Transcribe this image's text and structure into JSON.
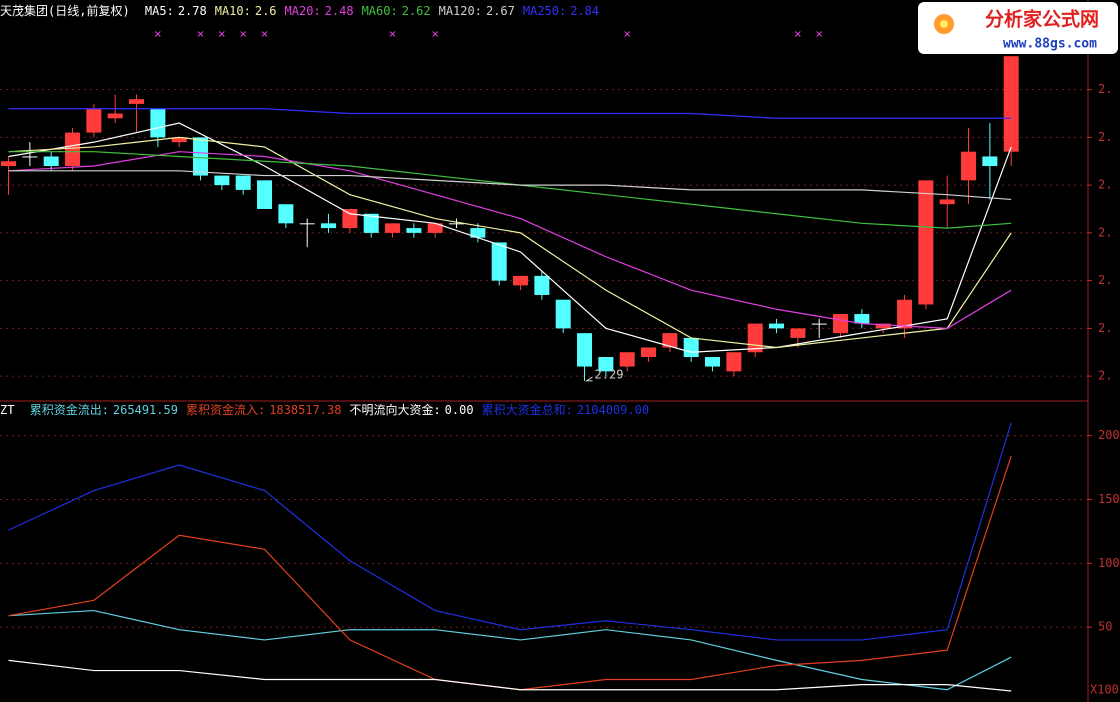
{
  "chart_data": [
    {
      "type": "candlestick",
      "title": "天茂集团(日线,前复权)",
      "open": [
        2.74,
        2.76,
        2.76,
        2.74,
        2.81,
        2.84,
        2.87,
        2.86,
        2.79,
        2.8,
        2.72,
        2.72,
        2.71,
        2.66,
        2.62,
        2.62,
        2.61,
        2.64,
        2.6,
        2.61,
        2.6,
        2.62,
        2.61,
        2.58,
        2.49,
        2.51,
        2.46,
        2.39,
        2.34,
        2.32,
        2.34,
        2.36,
        2.38,
        2.34,
        2.31,
        2.35,
        2.41,
        2.38,
        2.41,
        2.39,
        2.43,
        2.4,
        2.4,
        2.45,
        2.66,
        2.71,
        2.76,
        2.77
      ],
      "high": [
        2.76,
        2.79,
        2.77,
        2.82,
        2.87,
        2.89,
        2.89,
        2.86,
        2.8,
        2.8,
        2.72,
        2.72,
        2.71,
        2.66,
        2.63,
        2.64,
        2.65,
        2.64,
        2.62,
        2.62,
        2.62,
        2.63,
        2.62,
        2.58,
        2.51,
        2.52,
        2.46,
        2.39,
        2.34,
        2.35,
        2.36,
        2.39,
        2.38,
        2.34,
        2.35,
        2.41,
        2.42,
        2.4,
        2.42,
        2.43,
        2.44,
        2.41,
        2.47,
        2.71,
        2.72,
        2.82,
        2.83,
        2.97
      ],
      "low": [
        2.68,
        2.74,
        2.73,
        2.73,
        2.8,
        2.83,
        2.81,
        2.78,
        2.78,
        2.71,
        2.69,
        2.68,
        2.65,
        2.61,
        2.57,
        2.6,
        2.6,
        2.59,
        2.59,
        2.59,
        2.59,
        2.61,
        2.58,
        2.49,
        2.48,
        2.46,
        2.39,
        2.29,
        2.3,
        2.31,
        2.33,
        2.35,
        2.33,
        2.31,
        2.3,
        2.34,
        2.39,
        2.36,
        2.38,
        2.38,
        2.4,
        2.39,
        2.38,
        2.44,
        2.61,
        2.66,
        2.67,
        2.74
      ],
      "close": [
        2.75,
        2.76,
        2.74,
        2.81,
        2.86,
        2.85,
        2.88,
        2.8,
        2.8,
        2.72,
        2.7,
        2.69,
        2.65,
        2.62,
        2.62,
        2.61,
        2.65,
        2.6,
        2.62,
        2.6,
        2.62,
        2.62,
        2.59,
        2.5,
        2.51,
        2.47,
        2.4,
        2.32,
        2.31,
        2.35,
        2.36,
        2.39,
        2.34,
        2.32,
        2.35,
        2.41,
        2.4,
        2.4,
        2.41,
        2.43,
        2.41,
        2.41,
        2.46,
        2.71,
        2.67,
        2.77,
        2.74,
        2.97
      ],
      "up_color": "#ff3b3b",
      "down_color": "#54ffff",
      "flat_color": "#ffffff",
      "ma_x": [
        0,
        4,
        8,
        12,
        16,
        20,
        24,
        28,
        32,
        36,
        40,
        44,
        47
      ],
      "series": [
        {
          "name": "MA5:",
          "current": 2.78,
          "color": "#ffffff",
          "values": [
            2.76,
            2.79,
            2.83,
            2.74,
            2.64,
            2.62,
            2.56,
            2.4,
            2.35,
            2.36,
            2.39,
            2.42,
            2.78
          ]
        },
        {
          "name": "MA10:",
          "current": 2.6,
          "color": "#f0f0a0",
          "values": [
            2.77,
            2.78,
            2.8,
            2.78,
            2.68,
            2.63,
            2.6,
            2.48,
            2.38,
            2.36,
            2.38,
            2.4,
            2.6
          ]
        },
        {
          "name": "MA20:",
          "current": 2.48,
          "color": "#e040e0",
          "values": [
            2.73,
            2.74,
            2.77,
            2.76,
            2.73,
            2.68,
            2.63,
            2.55,
            2.48,
            2.44,
            2.41,
            2.4,
            2.48
          ]
        },
        {
          "name": "MA60:",
          "current": 2.62,
          "color": "#40c040",
          "values": [
            2.77,
            2.77,
            2.76,
            2.75,
            2.74,
            2.72,
            2.7,
            2.68,
            2.66,
            2.64,
            2.62,
            2.61,
            2.62
          ]
        },
        {
          "name": "MA120:",
          "current": 2.67,
          "color": "#d0d0d0",
          "values": [
            2.73,
            2.73,
            2.73,
            2.72,
            2.72,
            2.71,
            2.7,
            2.7,
            2.69,
            2.69,
            2.69,
            2.68,
            2.67
          ]
        },
        {
          "name": "MA250:",
          "current": 2.84,
          "color": "#3030ff",
          "values": [
            2.86,
            2.86,
            2.86,
            2.86,
            2.85,
            2.85,
            2.85,
            2.85,
            2.85,
            2.84,
            2.84,
            2.84,
            2.84
          ]
        }
      ],
      "signals": [
        7,
        9,
        10,
        11,
        12,
        18,
        20,
        29,
        37,
        38
      ],
      "signal_color": "#e040e0",
      "annotation": "2.29",
      "xlim": [
        -0.4,
        50.6
      ],
      "ylim": [
        2.25,
        3.05
      ],
      "yticks": [
        {
          "value": 2.3,
          "label": "2."
        },
        {
          "value": 2.4,
          "label": "2."
        },
        {
          "value": 2.5,
          "label": "2."
        },
        {
          "value": 2.6,
          "label": "2."
        },
        {
          "value": 2.7,
          "label": "2."
        },
        {
          "value": 2.8,
          "label": "2."
        },
        {
          "value": 2.9,
          "label": "2."
        }
      ],
      "grid": true
    },
    {
      "type": "line",
      "title": "ZT",
      "x": [
        0,
        4,
        8,
        12,
        16,
        20,
        24,
        28,
        32,
        36,
        40,
        44,
        47
      ],
      "series": [
        {
          "name": "累积资金流出:",
          "current": 265491.59,
          "color": "#60d0e0",
          "values": [
            59,
            63,
            48,
            40,
            48,
            48,
            40,
            48,
            40,
            24,
            9,
            1,
            26.5
          ]
        },
        {
          "name": "累积资金流入:",
          "current": 1838517.38,
          "color": "#e04020",
          "values": [
            59,
            71,
            122,
            111,
            40,
            9,
            1,
            9,
            9,
            20,
            24,
            32,
            184
          ]
        },
        {
          "name": "不明流向大资金:",
          "current": 0,
          "current_label": "0.00",
          "color": "#ffffff",
          "values": [
            24,
            16,
            16,
            9,
            9,
            9,
            1,
            1,
            1,
            1,
            5,
            5,
            0
          ]
        },
        {
          "name": "累积大资金总和:",
          "current": 2104009,
          "current_label": "2104009.00",
          "color": "#2030e0",
          "values": [
            126,
            157,
            177,
            157,
            102,
            63,
            48,
            55,
            48,
            40,
            40,
            48,
            210
          ]
        }
      ],
      "xlim": [
        -0.4,
        50.6
      ],
      "ylim": [
        0,
        224
      ],
      "yticks": [
        50,
        100,
        150,
        200
      ],
      "unit_label": "X100",
      "grid": true
    }
  ],
  "logo": {
    "title": "分析家公式网",
    "url": "www.88gs.com"
  }
}
